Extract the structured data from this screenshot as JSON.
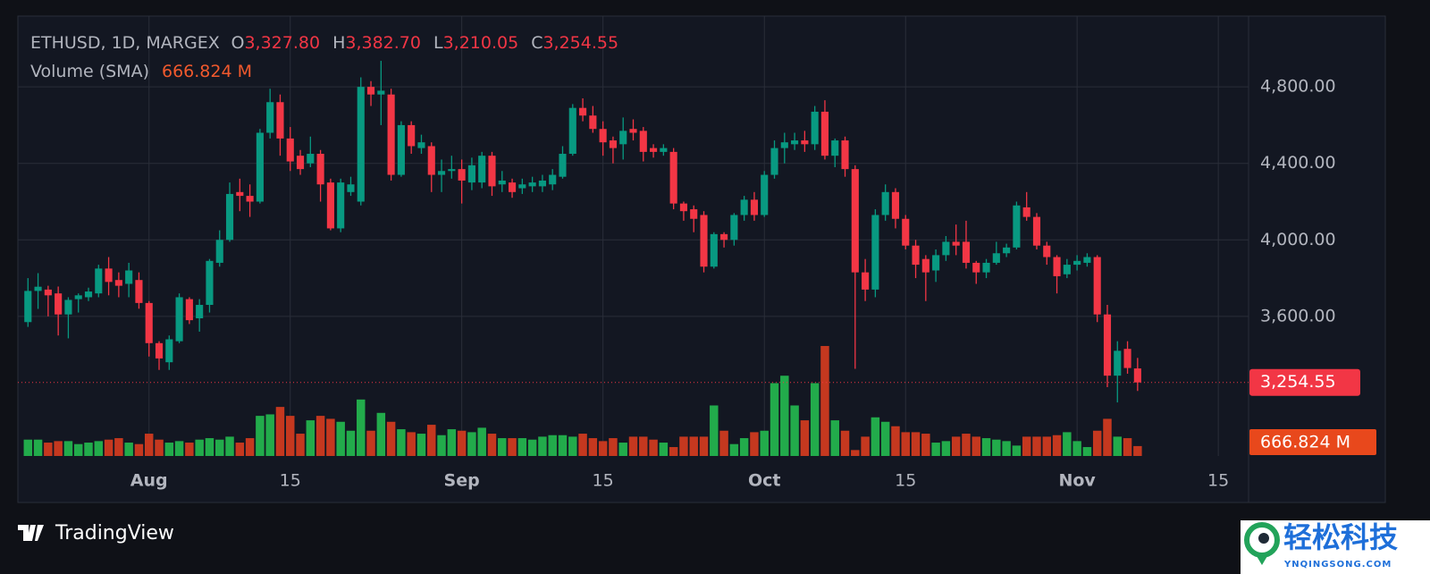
{
  "chart_data": {
    "type": "candlestick",
    "title": "ETHUSD, 1D, MARGEX",
    "header_keys": [
      "O",
      "H",
      "L",
      "C"
    ],
    "header_labels": [
      "3,327.80",
      "3,382.70",
      "3,210.05",
      "3,254.55"
    ],
    "categories": [
      "Jul 20",
      "Jul 21",
      "Jul 22",
      "Jul 23",
      "Jul 24",
      "Jul 25",
      "Jul 26",
      "Jul 27",
      "Jul 28",
      "Jul 29",
      "Jul 30",
      "Jul 31",
      "Aug 1",
      "Aug 2",
      "Aug 3",
      "Aug 4",
      "Aug 5",
      "Aug 6",
      "Aug 7",
      "Aug 8",
      "Aug 9",
      "Aug 10",
      "Aug 11",
      "Aug 12",
      "Aug 13",
      "Aug 14",
      "Aug 15",
      "Aug 16",
      "Aug 17",
      "Aug 18",
      "Aug 19",
      "Aug 20",
      "Aug 21",
      "Aug 22",
      "Aug 23",
      "Aug 24",
      "Aug 25",
      "Aug 26",
      "Aug 27",
      "Aug 28",
      "Aug 29",
      "Aug 30",
      "Aug 31",
      "Sep 1",
      "Sep 2",
      "Sep 3",
      "Sep 4",
      "Sep 5",
      "Sep 6",
      "Sep 7",
      "Sep 8",
      "Sep 9",
      "Sep 10",
      "Sep 11",
      "Sep 12",
      "Sep 13",
      "Sep 14",
      "Sep 15",
      "Sep 16",
      "Sep 17",
      "Sep 18",
      "Sep 19",
      "Sep 20",
      "Sep 21",
      "Sep 22",
      "Sep 23",
      "Sep 24",
      "Sep 25",
      "Sep 26",
      "Sep 27",
      "Sep 28",
      "Sep 29",
      "Sep 30",
      "Oct 1",
      "Oct 2",
      "Oct 3",
      "Oct 4",
      "Oct 5",
      "Oct 6",
      "Oct 7",
      "Oct 8",
      "Oct 9",
      "Oct 10",
      "Oct 11",
      "Oct 12",
      "Oct 13",
      "Oct 14",
      "Oct 15",
      "Oct 16",
      "Oct 17",
      "Oct 18",
      "Oct 19",
      "Oct 20",
      "Oct 21",
      "Oct 22",
      "Oct 23",
      "Oct 24",
      "Oct 25",
      "Oct 26",
      "Oct 27",
      "Oct 28",
      "Oct 29",
      "Oct 30",
      "Oct 31",
      "Nov 1",
      "Nov 2",
      "Nov 3",
      "Nov 4",
      "Nov 5",
      "Nov 6",
      "Nov 7"
    ],
    "open": [
      3570,
      3733,
      3740,
      3720,
      3610,
      3690,
      3700,
      3720,
      3850,
      3790,
      3770,
      3790,
      3670,
      3460,
      3360,
      3470,
      3690,
      3590,
      3660,
      3880,
      4000,
      4250,
      4230,
      4200,
      4560,
      4720,
      4530,
      4440,
      4400,
      4450,
      4300,
      4060,
      4250,
      4200,
      4800,
      4760,
      4760,
      4340,
      4600,
      4480,
      4490,
      4340,
      4360,
      4370,
      4300,
      4300,
      4440,
      4290,
      4300,
      4270,
      4280,
      4280,
      4290,
      4330,
      4450,
      4690,
      4650,
      4580,
      4520,
      4500,
      4580,
      4570,
      4480,
      4460,
      4460,
      4190,
      4160,
      4130,
      3860,
      4030,
      4000,
      4130,
      4210,
      4130,
      4340,
      4480,
      4500,
      4520,
      4500,
      4670,
      4440,
      4520,
      4370,
      3830,
      3740,
      4130,
      4250,
      4110,
      3970,
      3900,
      3840,
      3920,
      3990,
      3990,
      3880,
      3830,
      3880,
      3930,
      3960,
      4170,
      4120,
      3970,
      3910,
      3820,
      3870,
      3880,
      3910,
      3610,
      3290,
      3430,
      3327.8
    ],
    "high": [
      3800,
      3826,
      3760,
      3756,
      3700,
      3720,
      3750,
      3870,
      3910,
      3830,
      3880,
      3830,
      3680,
      3470,
      3500,
      3720,
      3700,
      3690,
      3900,
      4050,
      4300,
      4320,
      4290,
      4580,
      4790,
      4760,
      4590,
      4470,
      4540,
      4470,
      4320,
      4320,
      4330,
      4850,
      4830,
      4936,
      4790,
      4620,
      4620,
      4550,
      4510,
      4420,
      4440,
      4420,
      4430,
      4460,
      4460,
      4360,
      4320,
      4320,
      4330,
      4340,
      4370,
      4490,
      4710,
      4740,
      4700,
      4620,
      4540,
      4640,
      4630,
      4590,
      4500,
      4500,
      4480,
      4200,
      4180,
      4150,
      4040,
      4040,
      4140,
      4230,
      4250,
      4360,
      4520,
      4560,
      4560,
      4570,
      4700,
      4730,
      4530,
      4540,
      4390,
      3900,
      4160,
      4290,
      4270,
      4130,
      4000,
      3920,
      3950,
      4020,
      4080,
      4100,
      3890,
      3900,
      3990,
      3980,
      4200,
      4250,
      4140,
      3990,
      3920,
      3900,
      3920,
      3930,
      3920,
      3660,
      3470,
      3470,
      3382.7
    ],
    "low": [
      3545,
      3639,
      3600,
      3500,
      3485,
      3620,
      3680,
      3700,
      3710,
      3700,
      3700,
      3640,
      3390,
      3320,
      3320,
      3460,
      3560,
      3520,
      3620,
      3860,
      3990,
      4150,
      4120,
      4190,
      4530,
      4440,
      4360,
      4340,
      4380,
      4200,
      4050,
      4040,
      4230,
      4180,
      4700,
      4600,
      4310,
      4330,
      4450,
      4450,
      4250,
      4250,
      4320,
      4190,
      4260,
      4270,
      4230,
      4250,
      4220,
      4240,
      4250,
      4250,
      4260,
      4320,
      4440,
      4620,
      4560,
      4440,
      4400,
      4420,
      4520,
      4410,
      4430,
      4440,
      4160,
      4100,
      4040,
      3830,
      3850,
      3960,
      3970,
      4100,
      4100,
      4120,
      4320,
      4400,
      4470,
      4460,
      4470,
      4420,
      4380,
      4330,
      3326,
      3680,
      3700,
      4100,
      4060,
      3950,
      3800,
      3680,
      3780,
      3890,
      3920,
      3850,
      3770,
      3800,
      3870,
      3910,
      3950,
      4100,
      3950,
      3870,
      3720,
      3800,
      3840,
      3860,
      3570,
      3230,
      3150,
      3300,
      3210.05
    ],
    "close": [
      3733,
      3755,
      3710,
      3610,
      3686,
      3710,
      3730,
      3850,
      3780,
      3760,
      3840,
      3670,
      3460,
      3380,
      3480,
      3700,
      3580,
      3660,
      3890,
      4000,
      4240,
      4230,
      4200,
      4560,
      4720,
      4530,
      4410,
      4370,
      4450,
      4290,
      4060,
      4300,
      4290,
      4800,
      4760,
      4780,
      4340,
      4600,
      4490,
      4510,
      4340,
      4360,
      4370,
      4310,
      4390,
      4440,
      4280,
      4310,
      4250,
      4290,
      4300,
      4310,
      4340,
      4450,
      4690,
      4650,
      4580,
      4510,
      4480,
      4570,
      4560,
      4460,
      4460,
      4480,
      4190,
      4150,
      4110,
      3860,
      4030,
      4000,
      4130,
      4210,
      4130,
      4340,
      4480,
      4510,
      4520,
      4500,
      4670,
      4440,
      4520,
      4370,
      3830,
      3740,
      4130,
      4250,
      4110,
      3970,
      3870,
      3830,
      3920,
      3990,
      3970,
      3880,
      3830,
      3880,
      3930,
      3960,
      4180,
      4120,
      3970,
      3910,
      3810,
      3870,
      3890,
      3910,
      3610,
      3290,
      3420,
      3330,
      3254.55
    ],
    "up_color": "#089981",
    "down_color": "#f23645",
    "last_price_label": "3,254.55",
    "xlim": [
      "Jul 19",
      "Nov 18"
    ],
    "xticks": [
      {
        "value": "Aug 1",
        "label": "Aug"
      },
      {
        "value": "Aug 15",
        "label": "15"
      },
      {
        "value": "Sep 1",
        "label": "Sep"
      },
      {
        "value": "Sep 15",
        "label": "15"
      },
      {
        "value": "Oct 1",
        "label": "Oct"
      },
      {
        "value": "Oct 15",
        "label": "15"
      },
      {
        "value": "Nov 1",
        "label": "Nov"
      },
      {
        "value": "Nov 15",
        "label": "15"
      }
    ],
    "ylim": [
      2870,
      5170
    ],
    "yticks": [
      {
        "value": 3600,
        "label": "3,600.00"
      },
      {
        "value": 4000,
        "label": "4,000.00"
      },
      {
        "value": 4400,
        "label": "4,400.00"
      },
      {
        "value": 4800,
        "label": "4,800.00"
      }
    ],
    "grid": true,
    "volume": {
      "name": "Volume (SMA)",
      "values": [
        1100,
        1100,
        900,
        1000,
        1000,
        800,
        900,
        1000,
        1100,
        1200,
        900,
        800,
        1500,
        1100,
        900,
        1000,
        900,
        1100,
        1200,
        1100,
        1300,
        900,
        1200,
        2700,
        2800,
        3300,
        2700,
        1500,
        2400,
        2700,
        2500,
        2300,
        1700,
        3800,
        1700,
        2900,
        2300,
        1800,
        1600,
        1500,
        2100,
        1400,
        1800,
        1700,
        1600,
        1900,
        1500,
        1200,
        1200,
        1200,
        1100,
        1300,
        1400,
        1400,
        1300,
        1500,
        1200,
        1000,
        1200,
        900,
        1300,
        1300,
        1100,
        900,
        600,
        1300,
        1300,
        1300,
        3400,
        1700,
        800,
        1200,
        1600,
        1700,
        4900,
        5400,
        3400,
        2400,
        4900,
        7400,
        2400,
        1700,
        400,
        1300,
        2600,
        2300,
        2000,
        1600,
        1600,
        1500,
        900,
        1000,
        1300,
        1500,
        1300,
        1200,
        1100,
        1000,
        700,
        1300,
        1300,
        1300,
        1400,
        1600,
        1000,
        600,
        1700,
        2500,
        1300,
        1200,
        666.824
      ],
      "value_label": "666.824 M",
      "ylim": [
        0,
        8000
      ],
      "up_color": "#22ab4b",
      "down_color": "#c5381f"
    }
  },
  "brand": "TradingView",
  "watermark": {
    "title": "轻松科技",
    "url": "YNQINGSONG.COM"
  }
}
